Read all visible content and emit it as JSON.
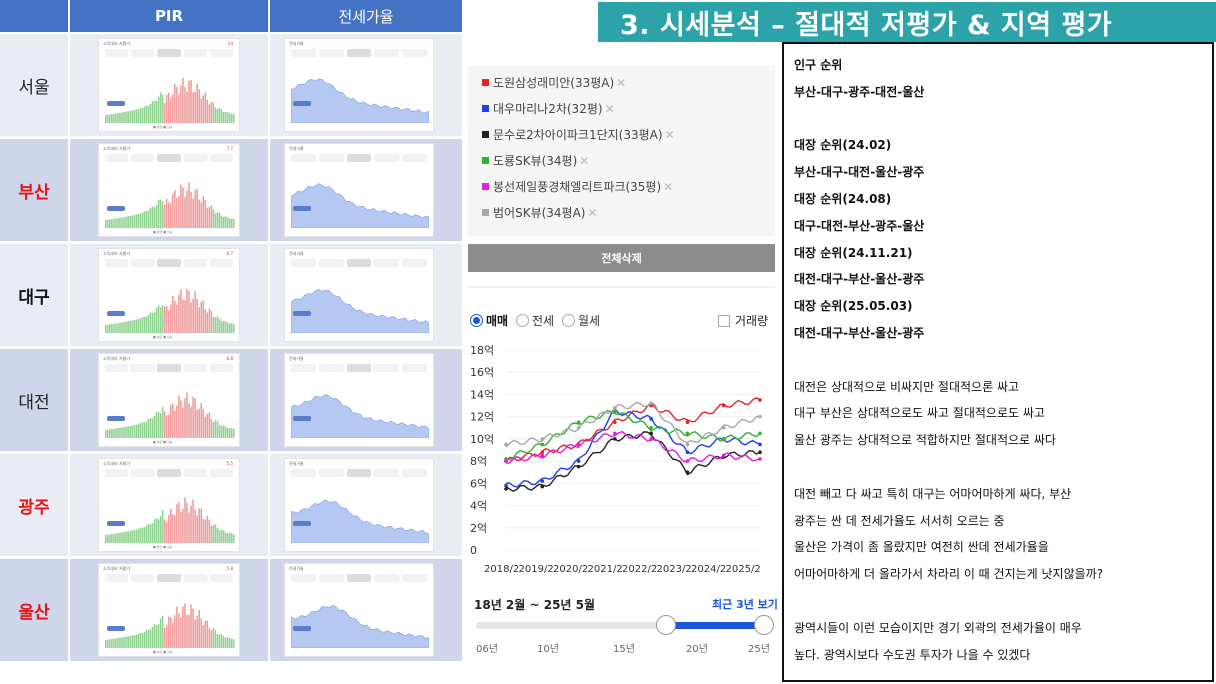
{
  "table": {
    "headers": {
      "pir": "PIR",
      "rent_ratio": "전세가율"
    },
    "rows": [
      {
        "city": "서울",
        "style": "normal",
        "pir_value": "24",
        "rent_value": ""
      },
      {
        "city": "부산",
        "style": "red",
        "pir_value": "7.7",
        "rent_value": ""
      },
      {
        "city": "대구",
        "style": "bold",
        "pir_value": "6.7",
        "rent_value": ""
      },
      {
        "city": "대전",
        "style": "normal",
        "pir_value": "6.8",
        "rent_value": ""
      },
      {
        "city": "광주",
        "style": "red",
        "pir_value": "5.5",
        "rent_value": ""
      },
      {
        "city": "울산",
        "style": "red",
        "pir_value": "5.8",
        "rent_value": ""
      }
    ],
    "mini_pir_title": "소득대비 저평가",
    "mini_rent_title": "전세가율",
    "mini_legend": "■ 평균  ■ 상승"
  },
  "title": "3. 시세분석 – 절대적 저평가 & 지역 평가",
  "apartments": [
    {
      "name": "도원삼성래미안(33평A)",
      "color": "#e32424"
    },
    {
      "name": "대우마리나2차(32평)",
      "color": "#1f3fe0"
    },
    {
      "name": "문수로2차아이파크1단지(33평A)",
      "color": "#222222"
    },
    {
      "name": "도룡SK뷰(34평)",
      "color": "#35b035"
    },
    {
      "name": "봉선제일풍경채엘리트파크(35평)",
      "color": "#e01fe0"
    },
    {
      "name": "범어SK뷰(34평A)",
      "color": "#a8a8a8"
    }
  ],
  "remove_symbol": "✕",
  "clear_all_label": "전체삭제",
  "radio_options": [
    "매매",
    "전세",
    "월세"
  ],
  "selected_radio": "매매",
  "volume_label": "거래량",
  "period_label": "18년 2월 ~ 25년 5월",
  "recent_3y_label": "최근 3년 보기",
  "slider_ticks": [
    "06년",
    "10년",
    "15년",
    "20년",
    "25년"
  ],
  "chart_data": {
    "type": "line",
    "x": [
      "2018/2",
      "2019/2",
      "2020/2",
      "2021/2",
      "2022/2",
      "2023/2",
      "2024/2",
      "2025/2"
    ],
    "ylim": [
      0,
      18
    ],
    "y_ticks": [
      "0",
      "2억",
      "4억",
      "6억",
      "8억",
      "10억",
      "12억",
      "14억",
      "16억",
      "18억"
    ],
    "series": [
      {
        "name": "도원삼성래미안(33평A)",
        "color": "#e32424",
        "values": [
          8,
          8.8,
          9.5,
          11.5,
          13,
          11.5,
          13,
          13.5
        ]
      },
      {
        "name": "대우마리나2차(32평)",
        "color": "#1f3fe0",
        "values": [
          5.8,
          6.2,
          8,
          12.5,
          11.8,
          8.8,
          10,
          9.5
        ]
      },
      {
        "name": "문수로2차아이파크1단지(33평A)",
        "color": "#222222",
        "values": [
          5.5,
          5.7,
          7.5,
          10,
          10.5,
          7,
          8.5,
          8.8
        ]
      },
      {
        "name": "도룡SK뷰(34평)",
        "color": "#35b035",
        "values": [
          8.2,
          9.5,
          11.5,
          12.5,
          11,
          10.5,
          10,
          10.5
        ]
      },
      {
        "name": "봉선제일풍경채엘리트파크(35평)",
        "color": "#e01fe0",
        "values": [
          8,
          8.5,
          9.5,
          10.5,
          10,
          8,
          8.5,
          8.2
        ]
      },
      {
        "name": "범어SK뷰(34평A)",
        "color": "#a8a8a8",
        "values": [
          9.5,
          10,
          11,
          12.8,
          13.2,
          9.5,
          11,
          12
        ]
      }
    ]
  },
  "notes": [
    {
      "text": "인구 순위",
      "bold": true
    },
    {
      "text": "부산-대구-광주-대전-울산",
      "bold": true
    },
    {
      "text": "",
      "bold": false
    },
    {
      "text": "대장 순위(24.02)",
      "bold": true
    },
    {
      "text": "부산-대구-대전-울산-광주",
      "bold": true
    },
    {
      "text": "대장 순위(24.08)",
      "bold": true
    },
    {
      "text": "대구-대전-부산-광주-울산",
      "bold": true
    },
    {
      "text": "대장 순위(24.11.21)",
      "bold": true
    },
    {
      "text": "대전-대구-부산-울산-광주",
      "bold": true
    },
    {
      "text": "대장 순위(25.05.03)",
      "bold": true
    },
    {
      "text": "대전-대구-부산-울산-광주",
      "bold": true
    },
    {
      "text": "",
      "bold": false
    },
    {
      "text": "대전은 상대적으로 비싸지만 절대적으론 싸고",
      "bold": false
    },
    {
      "text": "대구 부산은 상대적으로도 싸고 절대적으로도 싸고",
      "bold": false
    },
    {
      "text": "울산 광주는 상대적으로 적합하지만 절대적으로 싸다",
      "bold": false
    },
    {
      "text": "",
      "bold": false
    },
    {
      "text": "대전 빼고 다 싸고 특히 대구는 어마어마하게 싸다, 부산",
      "bold": false
    },
    {
      "text": "광주는 싼 데 전세가율도 서서히 오르는 중",
      "bold": false
    },
    {
      "text": "울산은 가격이 좀 올랐지만 여전히 싼데 전세가율을",
      "bold": false
    },
    {
      "text": "어마어마하게 더 올라가서 차라리 이 때 건지는게 낫지않을까?",
      "bold": false
    },
    {
      "text": "",
      "bold": false
    },
    {
      "text": "광역시들이 이런 모습이지만 경기 외곽의 전세가율이 매우",
      "bold": false
    },
    {
      "text": "높다. 광역시보다 수도권 투자가 나을 수 있겠다",
      "bold": false
    }
  ]
}
